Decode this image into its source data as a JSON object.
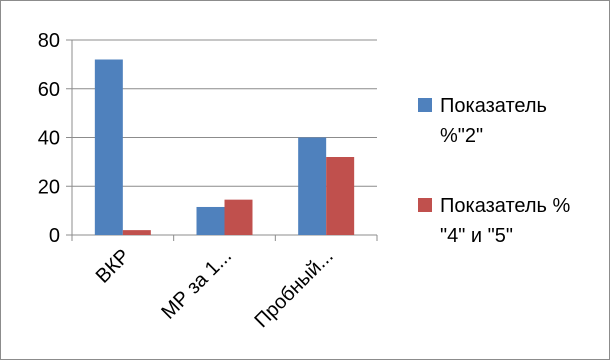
{
  "chart_data": {
    "type": "bar",
    "categories": [
      "ВКР",
      "МР за 1...",
      "Пробный..."
    ],
    "series": [
      {
        "name_lines": [
          "Показатель",
          "%\"2\""
        ],
        "color": "#4f81bd",
        "values": [
          72,
          11.5,
          40
        ]
      },
      {
        "name_lines": [
          "Показатель %",
          "\"4\" и \"5\""
        ],
        "color": "#c0504d",
        "values": [
          2,
          14.5,
          32
        ]
      }
    ],
    "ylim": [
      0,
      80
    ],
    "yticks": [
      "0",
      "20",
      "40",
      "60",
      "80"
    ],
    "grid": true,
    "legend_position": "right"
  }
}
